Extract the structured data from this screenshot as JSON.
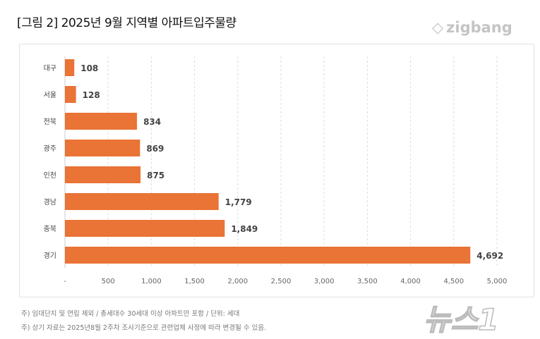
{
  "title": "[그림 2] 2025년 9월 지역별 아파트입주물량",
  "logo": "zigbang",
  "watermark": "뉴스1",
  "chart_data": {
    "type": "bar",
    "orientation": "horizontal",
    "categories": [
      "대구",
      "서울",
      "전북",
      "광주",
      "인천",
      "경남",
      "충북",
      "경기"
    ],
    "values": [
      108,
      128,
      834,
      869,
      875,
      1779,
      1849,
      4692
    ],
    "data_labels": [
      "108",
      "128",
      "834",
      "869",
      "875",
      "1,779",
      "1,849",
      "4,692"
    ],
    "xlim": [
      0,
      5000
    ],
    "x_ticks": [
      0,
      500,
      1000,
      1500,
      2000,
      2500,
      3000,
      3500,
      4000,
      4500,
      5000
    ],
    "x_tick_labels": [
      "-",
      "500",
      "1,000",
      "1,500",
      "2,000",
      "2,500",
      "3,000",
      "3,500",
      "4,000",
      "4,500",
      "5,000"
    ],
    "grid": "vertical dashed",
    "bar_color": "#ea7336"
  },
  "notes": [
    "주) 임대단지 및 연립 제외 / 총세대수 30세대 이상 아파트만 포함 / 단위: 세대",
    "주) 상기 자료는 2025년8월 2주차 조사기준으로 관련업체 사정에 따라 변경될 수 있음."
  ]
}
